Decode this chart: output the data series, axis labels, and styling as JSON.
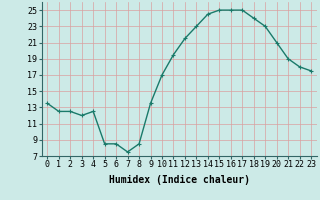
{
  "x": [
    0,
    1,
    2,
    3,
    4,
    5,
    6,
    7,
    8,
    9,
    10,
    11,
    12,
    13,
    14,
    15,
    16,
    17,
    18,
    19,
    20,
    21,
    22,
    23
  ],
  "y": [
    13.5,
    12.5,
    12.5,
    12.0,
    12.5,
    8.5,
    8.5,
    7.5,
    8.5,
    13.5,
    17.0,
    19.5,
    21.5,
    23.0,
    24.5,
    25.0,
    25.0,
    25.0,
    24.0,
    23.0,
    21.0,
    19.0,
    18.0,
    17.5
  ],
  "line_color": "#1a7a6a",
  "marker": "+",
  "marker_size": 3.5,
  "background_color": "#cceae7",
  "grid_color": "#d9a0a0",
  "xlabel": "Humidex (Indice chaleur)",
  "xlim": [
    -0.5,
    23.5
  ],
  "ylim": [
    7,
    26
  ],
  "yticks": [
    7,
    9,
    11,
    13,
    15,
    17,
    19,
    21,
    23,
    25
  ],
  "xticks": [
    0,
    1,
    2,
    3,
    4,
    5,
    6,
    7,
    8,
    9,
    10,
    11,
    12,
    13,
    14,
    15,
    16,
    17,
    18,
    19,
    20,
    21,
    22,
    23
  ],
  "xlabel_fontsize": 7,
  "tick_fontsize": 6,
  "line_width": 1.0,
  "marker_edge_width": 0.8
}
